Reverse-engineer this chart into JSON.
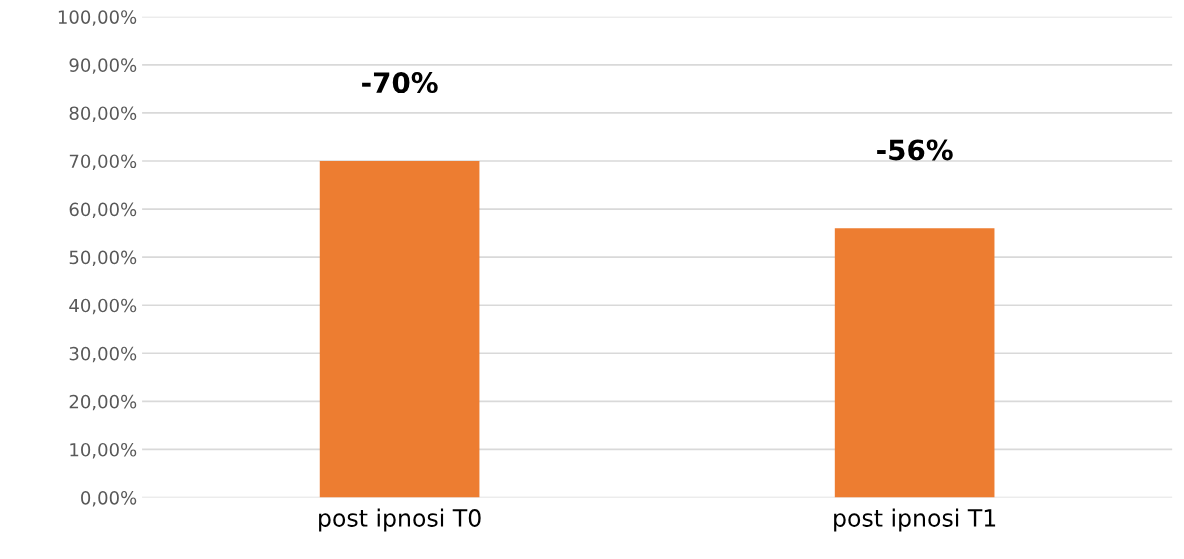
{
  "chart_data": {
    "type": "bar",
    "categories": [
      "post ipnosi T0",
      "post ipnosi T1"
    ],
    "values": [
      70,
      56
    ],
    "color": "#ed7d31",
    "annotations": [
      {
        "text": "-70%",
        "x": "post ipnosi T0",
        "y": 70
      },
      {
        "text": "-56%",
        "x": "post ipnosi T1",
        "y": 56
      }
    ],
    "ylim": [
      0,
      100
    ],
    "yticks": [
      {
        "value": 0,
        "label": "0,00%"
      },
      {
        "value": 10,
        "label": "10,00%"
      },
      {
        "value": 20,
        "label": "20,00%"
      },
      {
        "value": 30,
        "label": "30,00%"
      },
      {
        "value": 40,
        "label": "40,00%"
      },
      {
        "value": 50,
        "label": "50,00%"
      },
      {
        "value": 60,
        "label": "60,00%"
      },
      {
        "value": 70,
        "label": "70,00%"
      },
      {
        "value": 80,
        "label": "80,00%"
      },
      {
        "value": 90,
        "label": "90,00%"
      },
      {
        "value": 100,
        "label": "100,00%"
      }
    ],
    "grid": "y",
    "legend": false
  }
}
